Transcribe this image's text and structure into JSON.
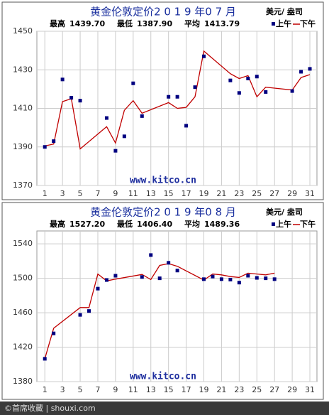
{
  "chart_data": [
    {
      "type": "line",
      "title": "黄金伦敦定价2 0 1 9 年0 7 月",
      "unit": "美元/ 盎司",
      "stats": [
        {
          "name": "最高",
          "text": "1439.70"
        },
        {
          "name": "最低",
          "text": "1387.90"
        },
        {
          "name": "平均",
          "text": "1413.79"
        }
      ],
      "watermark": "www.kitco.cn",
      "x": [
        1,
        2,
        3,
        4,
        5,
        8,
        9,
        10,
        11,
        12,
        15,
        16,
        17,
        18,
        19,
        22,
        23,
        24,
        25,
        26,
        29,
        30,
        31
      ],
      "series": [
        {
          "name": "上午",
          "color": "#000080",
          "style": "marker",
          "values": [
            1390,
            1393,
            1425,
            1415.5,
            1414,
            1405,
            1388,
            1395.5,
            1423,
            1406,
            1416,
            1416,
            1401,
            1421,
            1437,
            1424.5,
            1418,
            1425.5,
            1426.5,
            1418.5,
            1419,
            1429,
            1430.5
          ]
        },
        {
          "name": "下午",
          "color": "#c00000",
          "style": "line",
          "values": [
            1390.5,
            1391.5,
            1413.5,
            1415,
            1389,
            1400.5,
            1392,
            1409,
            1414,
            1407.5,
            1413,
            1410,
            1410.5,
            1416,
            1439.7,
            1428,
            1425.5,
            1427,
            1416,
            1421,
            1419.5,
            1426,
            1427.5
          ]
        }
      ],
      "xlim": [
        0.1,
        31.8
      ],
      "xticks": [
        1,
        3,
        5,
        7,
        9,
        11,
        13,
        15,
        17,
        19,
        21,
        23,
        25,
        27,
        29,
        31
      ],
      "ylim": [
        1370,
        1450
      ],
      "yticks": [
        1370,
        1390,
        1410,
        1430,
        1450
      ],
      "grid": true
    },
    {
      "type": "line",
      "title": "黄金伦敦定价2 0 1 9 年0 8 月",
      "unit": "美元/ 盎司",
      "stats": [
        {
          "name": "最高",
          "text": "1527.20"
        },
        {
          "name": "最低",
          "text": "1406.40"
        },
        {
          "name": "平均",
          "text": "1489.36"
        }
      ],
      "watermark": "www.kitco.cn",
      "x": [
        1,
        2,
        5,
        6,
        7,
        8,
        9,
        12,
        13,
        14,
        15,
        16,
        19,
        20,
        21,
        22,
        23,
        24,
        25,
        26,
        27
      ],
      "series": [
        {
          "name": "上午",
          "color": "#000080",
          "style": "marker",
          "values": [
            1406.5,
            1436,
            1457.5,
            1462,
            1488,
            1498,
            1503,
            1501.5,
            1527,
            1500,
            1518,
            1509,
            1499,
            1502,
            1499,
            1498.5,
            1495,
            1503,
            1500.5,
            1500,
            1499
          ]
        },
        {
          "name": "下午",
          "color": "#c00000",
          "style": "line",
          "values": [
            1406.5,
            1442,
            1466,
            1466,
            1505,
            1497,
            1499,
            1504.5,
            1498.5,
            1515,
            1517,
            1514,
            1498,
            1505,
            1504,
            1502,
            1501,
            1506,
            1505,
            1504,
            1506
          ]
        }
      ],
      "xlim": [
        0.1,
        31.8
      ],
      "xticks": [
        1,
        3,
        5,
        7,
        9,
        11,
        13,
        15,
        17,
        19,
        21,
        23,
        25,
        27,
        29,
        31
      ],
      "ylim": [
        1380,
        1555
      ],
      "yticks": [
        1380,
        1420,
        1460,
        1500,
        1540
      ],
      "grid": true
    }
  ],
  "footer": "©首席收藏 | shouxi.com"
}
